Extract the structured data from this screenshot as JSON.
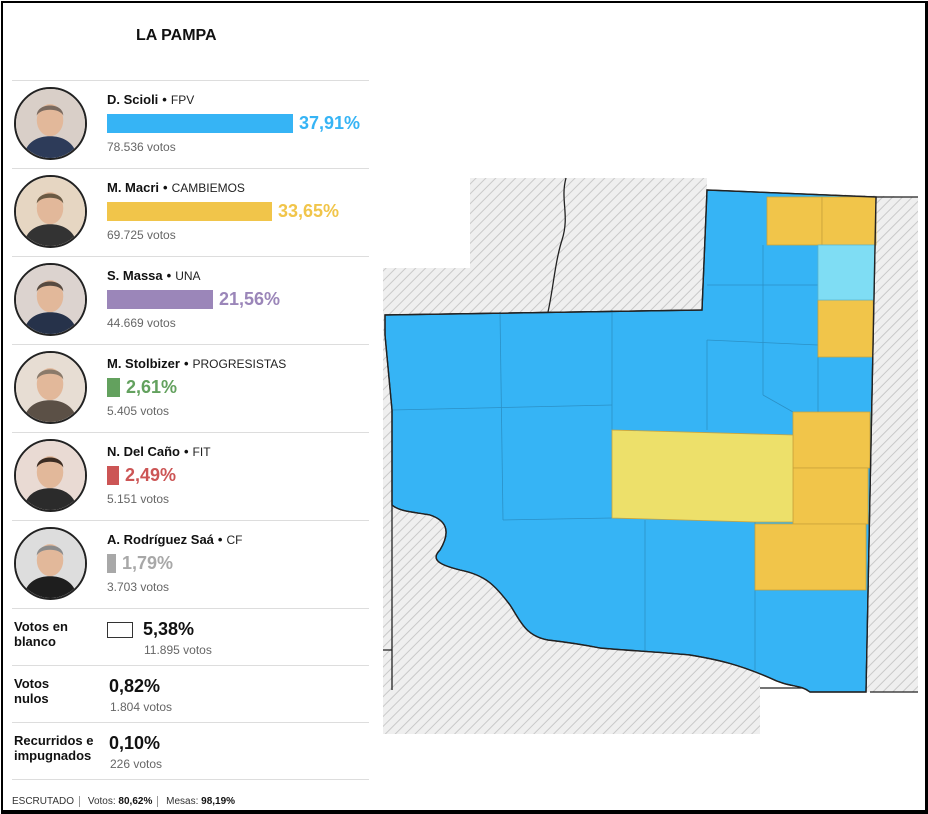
{
  "province": "LA PAMPA",
  "candidates": [
    {
      "name": "D. Scioli",
      "party": "FPV",
      "pct": "37,91%",
      "pct_value": 37.91,
      "votes": "78.536 votos",
      "color": "#36b4f5",
      "avatar": "scioli-portrait"
    },
    {
      "name": "M. Macri",
      "party": "CAMBIEMOS",
      "pct": "33,65%",
      "pct_value": 33.65,
      "votes": "69.725 votos",
      "color": "#f1c54a",
      "avatar": "macri-portrait"
    },
    {
      "name": "S. Massa",
      "party": "UNA",
      "pct": "21,56%",
      "pct_value": 21.56,
      "votes": "44.669 votos",
      "color": "#9b86b9",
      "avatar": "massa-portrait"
    },
    {
      "name": "M. Stolbizer",
      "party": "PROGRESISTAS",
      "pct": "2,61%",
      "pct_value": 2.61,
      "votes": "5.405 votos",
      "color": "#63a15e",
      "avatar": "stolbizer-portrait"
    },
    {
      "name": "N. Del Caño",
      "party": "FIT",
      "pct": "2,49%",
      "pct_value": 2.49,
      "votes": "5.151 votos",
      "color": "#cc5555",
      "avatar": "delcano-portrait"
    },
    {
      "name": "A. Rodríguez Saá",
      "party": "CF",
      "pct": "1,79%",
      "pct_value": 1.79,
      "votes": "3.703 votos",
      "color": "#a8a8a8",
      "avatar": "rodriguezsaa-portrait"
    }
  ],
  "others": [
    {
      "label": "Votos en blanco",
      "pct": "5,38%",
      "votes": "11.895 votos",
      "box": true
    },
    {
      "label": "Votos nulos",
      "pct": "0,82%",
      "votes": "1.804 votos",
      "box": false
    },
    {
      "label": "Recurridos e impugnados",
      "pct": "0,10%",
      "votes": "226 votos",
      "box": false
    }
  ],
  "footer": {
    "escrutado_label": "ESCRUTADO",
    "votos_label": "Votos:",
    "votos_value": "80,62%",
    "mesas_label": "Mesas:",
    "mesas_value": "98,19%"
  },
  "map_colors": {
    "fpv": "#36b4f5",
    "cambiemos": "#f1c54a",
    "cambiemos_light": "#ede06a",
    "una_light": "#7fddf4",
    "outside": "hatched-gray"
  }
}
